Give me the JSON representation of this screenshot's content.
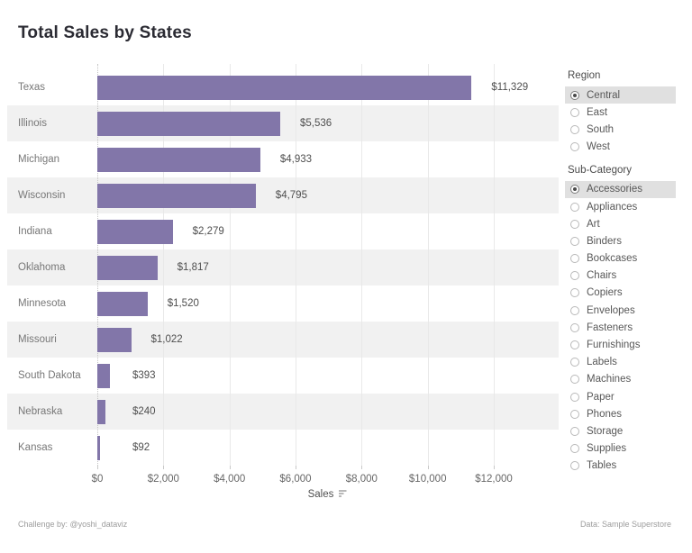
{
  "title": "Total Sales by States",
  "chart_data": {
    "type": "bar",
    "orientation": "horizontal",
    "title": "Total Sales by States",
    "categories": [
      "Texas",
      "Illinois",
      "Michigan",
      "Wisconsin",
      "Indiana",
      "Oklahoma",
      "Minnesota",
      "Missouri",
      "South Dakota",
      "Nebraska",
      "Kansas"
    ],
    "values": [
      11329,
      5536,
      4933,
      4795,
      2279,
      1817,
      1520,
      1022,
      393,
      240,
      92
    ],
    "value_labels": [
      "$11,329",
      "$5,536",
      "$4,933",
      "$4,795",
      "$2,279",
      "$1,817",
      "$1,520",
      "$1,022",
      "$393",
      "$240",
      "$92"
    ],
    "xlabel": "Sales",
    "ylabel": "",
    "x_ticks": [
      0,
      2000,
      4000,
      6000,
      8000,
      10000,
      12000
    ],
    "x_tick_labels": [
      "$0",
      "$2,000",
      "$4,000",
      "$6,000",
      "$8,000",
      "$10,000",
      "$12,000"
    ],
    "xlim": [
      0,
      12000
    ],
    "sort": "descending",
    "grid": true,
    "legend": "none",
    "bar_color": "#8276a9"
  },
  "filters": [
    {
      "title": "Region",
      "selected": "Central",
      "options": [
        "Central",
        "East",
        "South",
        "West"
      ]
    },
    {
      "title": "Sub-Category",
      "selected": "Accessories",
      "options": [
        "Accessories",
        "Appliances",
        "Art",
        "Binders",
        "Bookcases",
        "Chairs",
        "Copiers",
        "Envelopes",
        "Fasteners",
        "Furnishings",
        "Labels",
        "Machines",
        "Paper",
        "Phones",
        "Storage",
        "Supplies",
        "Tables"
      ]
    }
  ],
  "footer": {
    "left": "Challenge by: @yoshi_dataviz",
    "right": "Data: Sample Superstore"
  },
  "colors": {
    "bar": "#8276a9",
    "row_band": "#f1f1f1",
    "selected_highlight": "#e0e0e0",
    "grid_line": "#e9e9e9",
    "title_text": "#2b2b33"
  }
}
